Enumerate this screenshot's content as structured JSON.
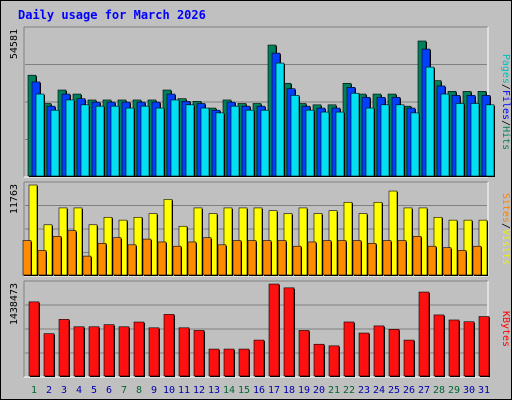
{
  "chart_data": {
    "title": "Daily usage for March 2026",
    "categories": [
      "1",
      "2",
      "3",
      "4",
      "5",
      "6",
      "7",
      "8",
      "9",
      "10",
      "11",
      "12",
      "13",
      "14",
      "15",
      "16",
      "17",
      "18",
      "19",
      "20",
      "21",
      "22",
      "23",
      "24",
      "25",
      "26",
      "27",
      "28",
      "29",
      "30",
      "31"
    ],
    "weekend_days": [
      1,
      7,
      8,
      14,
      15,
      21,
      22,
      28,
      29
    ],
    "weekend_color": "#006633",
    "weekday_color": "#0000aa",
    "panels": [
      {
        "type": "bar",
        "ymax_label": "54581",
        "ymax": 54581,
        "legend": [
          {
            "text": "Pages",
            "color": "#00c0c0"
          },
          {
            "text": "/",
            "color": "#000000"
          },
          {
            "text": "Files",
            "color": "#0000ff"
          },
          {
            "text": "/",
            "color": "#000000"
          },
          {
            "text": "Hits",
            "color": "#008060"
          }
        ],
        "series": [
          {
            "name": "Hits",
            "color": "#00805c",
            "values": [
              37800,
              27300,
              32300,
              30800,
              28600,
              28600,
              28600,
              28600,
              28600,
              32300,
              29100,
              28100,
              25600,
              28600,
              27300,
              27300,
              49000,
              34800,
              27300,
              26800,
              26800,
              34800,
              30800,
              30800,
              30800,
              26300,
              50500,
              35800,
              31800,
              31800,
              31800
            ]
          },
          {
            "name": "Files",
            "color": "#0040ff",
            "values": [
              35300,
              26300,
              30800,
              29100,
              27800,
              27800,
              27800,
              27800,
              27800,
              30800,
              28100,
              27300,
              24800,
              27800,
              26300,
              26300,
              46000,
              32800,
              26300,
              25600,
              25600,
              33300,
              29600,
              29600,
              29600,
              25600,
              47500,
              33800,
              30300,
              30300,
              30300
            ]
          },
          {
            "name": "Pages",
            "color": "#00e0f0",
            "values": [
              30800,
              24800,
              28600,
              26800,
              26300,
              26300,
              25600,
              26300,
              25600,
              28600,
              26800,
              25600,
              23800,
              26300,
              24800,
              24800,
              42300,
              30300,
              24800,
              24100,
              24100,
              31100,
              25600,
              26800,
              26800,
              23800,
              40800,
              30800,
              27300,
              27300,
              26800
            ]
          }
        ]
      },
      {
        "type": "bar",
        "ymax_label": "11763",
        "ymax": 11763,
        "legend": [
          {
            "text": "Sites",
            "color": "#ff8000"
          },
          {
            "text": "/",
            "color": "#000000"
          },
          {
            "text": "Visits",
            "color": "#f0f000"
          }
        ],
        "series": [
          {
            "name": "Visits",
            "color": "#ffff00",
            "values": [
              11760,
              6620,
              8800,
              8800,
              6620,
              7590,
              7220,
              7590,
              8070,
              9900,
              6430,
              8800,
              8070,
              8800,
              8800,
              8800,
              8440,
              8070,
              8800,
              8070,
              8440,
              9530,
              8070,
              9530,
              10980,
              8800,
              8800,
              7590,
              7220,
              7220,
              7220
            ]
          },
          {
            "name": "Sites",
            "color": "#ff8c00",
            "values": [
              4580,
              3300,
              5130,
              5860,
              2570,
              4220,
              4950,
              4030,
              4770,
              4400,
              3850,
              4400,
              4950,
              4030,
              4580,
              4580,
              4580,
              4580,
              3850,
              4400,
              4580,
              4580,
              4580,
              4220,
              4580,
              4580,
              5130,
              3850,
              3660,
              3300,
              3850
            ]
          }
        ]
      },
      {
        "type": "bar",
        "ymax_label": "1438473",
        "ymax": 1438473,
        "legend": [
          {
            "text": "KBytes",
            "color": "#ff0000"
          }
        ],
        "series": [
          {
            "name": "KBytes",
            "color": "#ff1010",
            "values": [
              1162000,
              671000,
              891000,
              777000,
              777000,
              810000,
              777000,
              850000,
              761000,
              968000,
              761000,
              720000,
              432000,
              432000,
              432000,
              571000,
              1438000,
              1379000,
              720000,
              507000,
              482000,
              851000,
              680000,
              790000,
              737000,
              571000,
              1314000,
              960000,
              882000,
              855000,
              935000
            ]
          }
        ]
      }
    ]
  }
}
